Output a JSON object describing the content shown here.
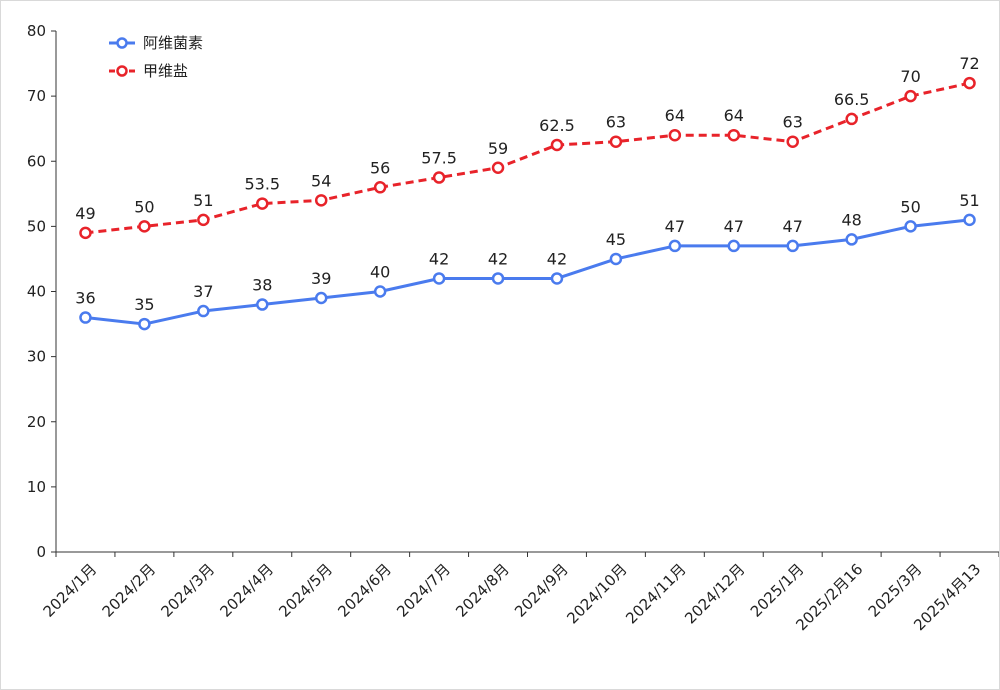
{
  "chart_data": {
    "type": "line",
    "title": "",
    "xlabel": "",
    "ylabel": "",
    "categories": [
      "2024/1月",
      "2024/2月",
      "2024/3月",
      "2024/4月",
      "2024/5月",
      "2024/6月",
      "2024/7月",
      "2024/8月",
      "2024/9月",
      "2024/10月",
      "2024/11月",
      "2024/12月",
      "2025/1月",
      "2025/2月16",
      "2025/3月",
      "2025/4月13"
    ],
    "ylim": [
      0,
      80
    ],
    "yticks": [
      0,
      10,
      20,
      30,
      40,
      50,
      60,
      70,
      80
    ],
    "grid": false,
    "legend_position": "top-left",
    "series": [
      {
        "name": "阿维菌素",
        "color": "#4a7bee",
        "line_style": "solid",
        "values": [
          36,
          35,
          37,
          38,
          39,
          40,
          42,
          42,
          42,
          45,
          47,
          47,
          47,
          48,
          50,
          51
        ],
        "labels": [
          "36",
          "35",
          "37",
          "38",
          "39",
          "40",
          "42",
          "42",
          "42",
          "45",
          "47",
          "47",
          "47",
          "48",
          "50",
          "51"
        ]
      },
      {
        "name": "甲维盐",
        "color": "#e8232a",
        "line_style": "dashed",
        "values": [
          49,
          50,
          51,
          53.5,
          54,
          56,
          57.5,
          59,
          62.5,
          63,
          64,
          64,
          63,
          66.5,
          70,
          72
        ],
        "labels": [
          "49",
          "50",
          "51",
          "53.5",
          "54",
          "56",
          "57.5",
          "59",
          "62.5",
          "63",
          "64",
          "64",
          "63",
          "66.5",
          "70",
          "72"
        ]
      }
    ]
  }
}
